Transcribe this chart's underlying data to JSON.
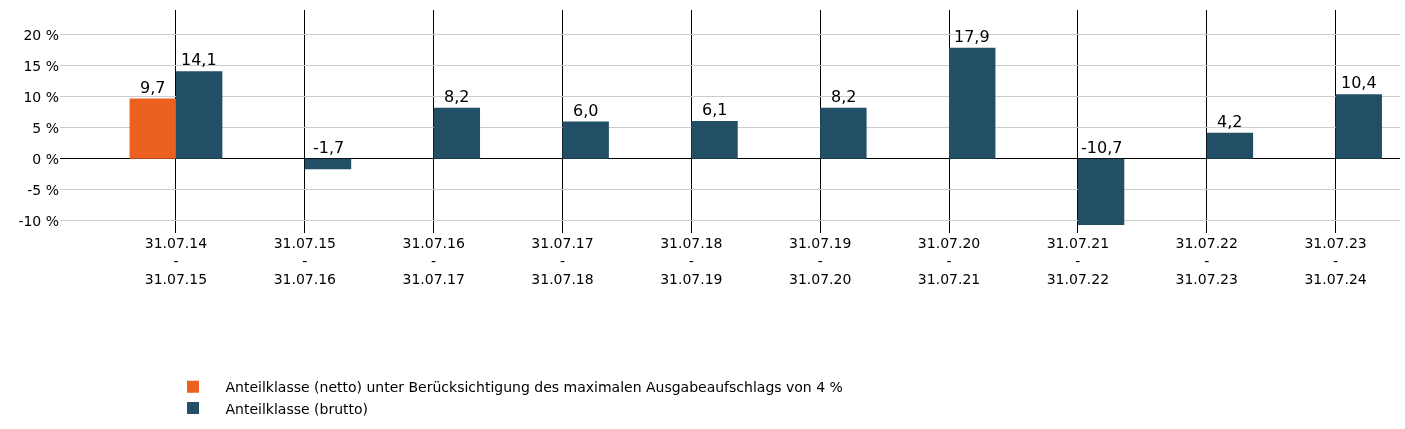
{
  "chart_data": {
    "type": "bar",
    "categories": [
      "31.07.14\n-\n31.07.15",
      "31.07.15\n-\n31.07.16",
      "31.07.16\n-\n31.07.17",
      "31.07.17\n-\n31.07.18",
      "31.07.18\n-\n31.07.19",
      "31.07.19\n-\n31.07.20",
      "31.07.20\n-\n31.07.21",
      "31.07.21\n-\n31.07.22",
      "31.07.22\n-\n31.07.23",
      "31.07.23\n-\n31.07.24"
    ],
    "series": [
      {
        "name": "Anteilklasse (netto) unter Berücksichtigung des maximalen Ausgabeaufschlags von 4 %",
        "color": "#ec6120",
        "values": [
          9.7,
          null,
          null,
          null,
          null,
          null,
          null,
          null,
          null,
          null
        ],
        "value_labels": [
          "9,7",
          null,
          null,
          null,
          null,
          null,
          null,
          null,
          null,
          null
        ]
      },
      {
        "name": "Anteilklasse (brutto)",
        "color": "#224e66",
        "values": [
          14.1,
          -1.7,
          8.2,
          6.0,
          6.1,
          8.2,
          17.9,
          -10.7,
          4.2,
          10.4
        ],
        "value_labels": [
          "14,1",
          "-1,7",
          "8,2",
          "6,0",
          "6,1",
          "8,2",
          "17,9",
          "-10,7",
          "4,2",
          "10,4"
        ]
      }
    ],
    "ylim": [
      -12,
      24
    ],
    "yticks": [
      {
        "value": -10,
        "label": "-10 %"
      },
      {
        "value": -5,
        "label": "-5 %"
      },
      {
        "value": 0,
        "label": "0 %"
      },
      {
        "value": 5,
        "label": "5 %"
      },
      {
        "value": 10,
        "label": "10 %"
      },
      {
        "value": 15,
        "label": "15 %"
      },
      {
        "value": 20,
        "label": "20 %"
      }
    ],
    "grid": true,
    "legend": "bottom"
  }
}
